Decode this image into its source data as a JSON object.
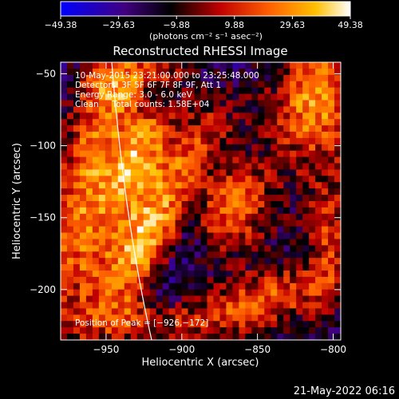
{
  "chart_data": {
    "type": "heatmap",
    "title": "Reconstructed RHESSI Image",
    "xlabel": "Heliocentric X (arcsec)",
    "ylabel": "Heliocentric Y (arcsec)",
    "xlim": [
      -980,
      -795
    ],
    "ylim": [
      -235,
      -42
    ],
    "x_ticks": [
      -950,
      -900,
      -850,
      -800
    ],
    "y_ticks": [
      -200,
      -150,
      -100,
      -50
    ],
    "x_tick_labels": [
      "−950",
      "−900",
      "−850",
      "−800"
    ],
    "y_tick_labels": [
      "−200",
      "−150",
      "−100",
      "−50"
    ],
    "colorbar": {
      "range": [
        -49.38,
        49.38
      ],
      "tick_labels": [
        "−49.38",
        "−29.63",
        "−9.88",
        "9.88",
        "29.63",
        "49.38"
      ],
      "units_label": "(photons cm⁻² s⁻¹ asec⁻²)",
      "colors": [
        "#0000ff",
        "#400080",
        "#000000",
        "#c00000",
        "#ff6000",
        "#ffc000",
        "#ffffff"
      ]
    },
    "annotations": [
      "10-May-2015 23:21:00.000 to 23:25:48.000",
      "Detectors: 3F 5F 6F 7F 8F 9F, Att 1",
      "Energy Range: 3.0 - 6.0 keV",
      "Clean     Total counts: 1.58E+04"
    ],
    "peak_label": "Position of Peak = [−926,−172]",
    "peak_position": [
      -926,
      -172
    ],
    "grid": false
  },
  "footer": {
    "timestamp": "21-May-2022 06:16"
  }
}
